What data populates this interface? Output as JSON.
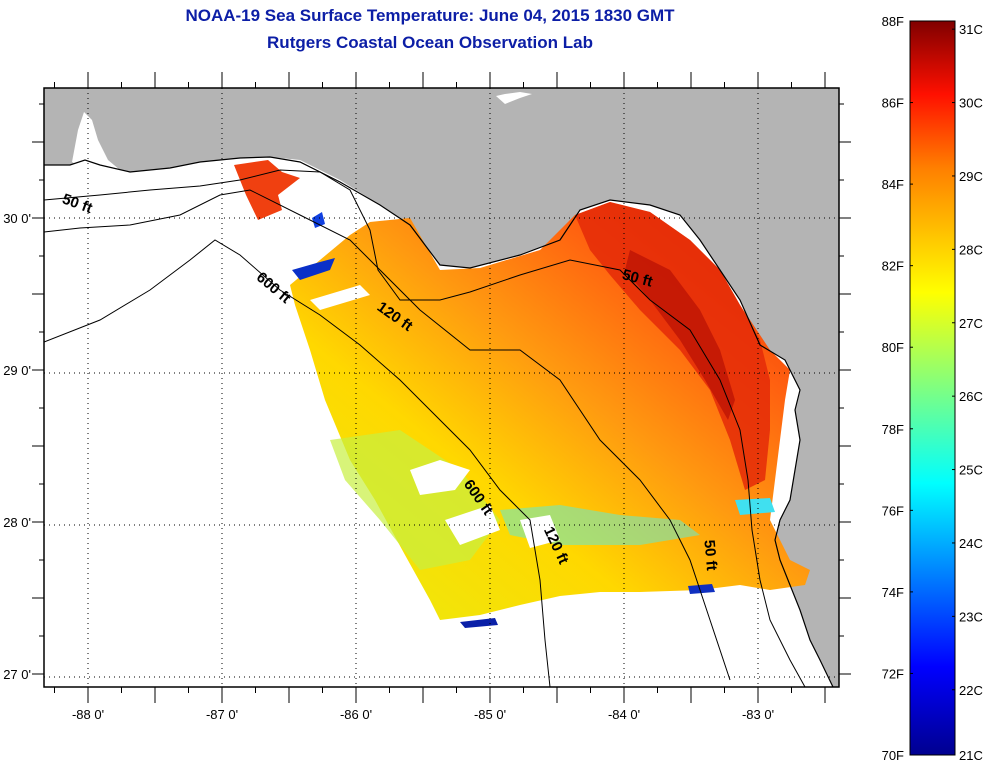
{
  "title": {
    "line1": "NOAA-19 Sea Surface Temperature:  June 04, 2015 1830 GMT",
    "line2": "Rutgers Coastal Ocean Observation Lab"
  },
  "map": {
    "region": "Northeastern Gulf of Mexico / Florida Big Bend",
    "land_color": "#b4b4b4",
    "no_data_color": "#ffffff",
    "x_ticks": [
      "-88 0'",
      "-87 0'",
      "-86 0'",
      "-85 0'",
      "-84 0'",
      "-83 0'"
    ],
    "y_ticks": [
      "30 0'",
      "29 0'",
      "28 0'",
      "27 0'"
    ],
    "lon_range": [
      -88.33,
      -82.4
    ],
    "lat_range": [
      26.93,
      30.86
    ],
    "grid": "dotted",
    "contour_labels": [
      {
        "text": "50 ft",
        "lon": -88.2,
        "lat": 30.1
      },
      {
        "text": "600 ft",
        "lon": -86.75,
        "lat": 29.6
      },
      {
        "text": "120 ft",
        "lon": -85.85,
        "lat": 29.4
      },
      {
        "text": "50 ft",
        "lon": -84.02,
        "lat": 29.6
      },
      {
        "text": "600 ft",
        "lon": -85.2,
        "lat": 28.25
      },
      {
        "text": "120 ft",
        "lon": -84.6,
        "lat": 27.95
      },
      {
        "text": "50 ft",
        "lon": -83.4,
        "lat": 27.88
      }
    ]
  },
  "colorbar": {
    "f_labels": [
      "88F",
      "86F",
      "84F",
      "82F",
      "80F",
      "78F",
      "76F",
      "74F",
      "72F",
      "70F"
    ],
    "c_labels": [
      "31C",
      "30C",
      "29C",
      "28C",
      "27C",
      "26C",
      "25C",
      "24C",
      "23C",
      "22C",
      "21C"
    ],
    "range_f": [
      70,
      88
    ],
    "colormap": "jet"
  }
}
